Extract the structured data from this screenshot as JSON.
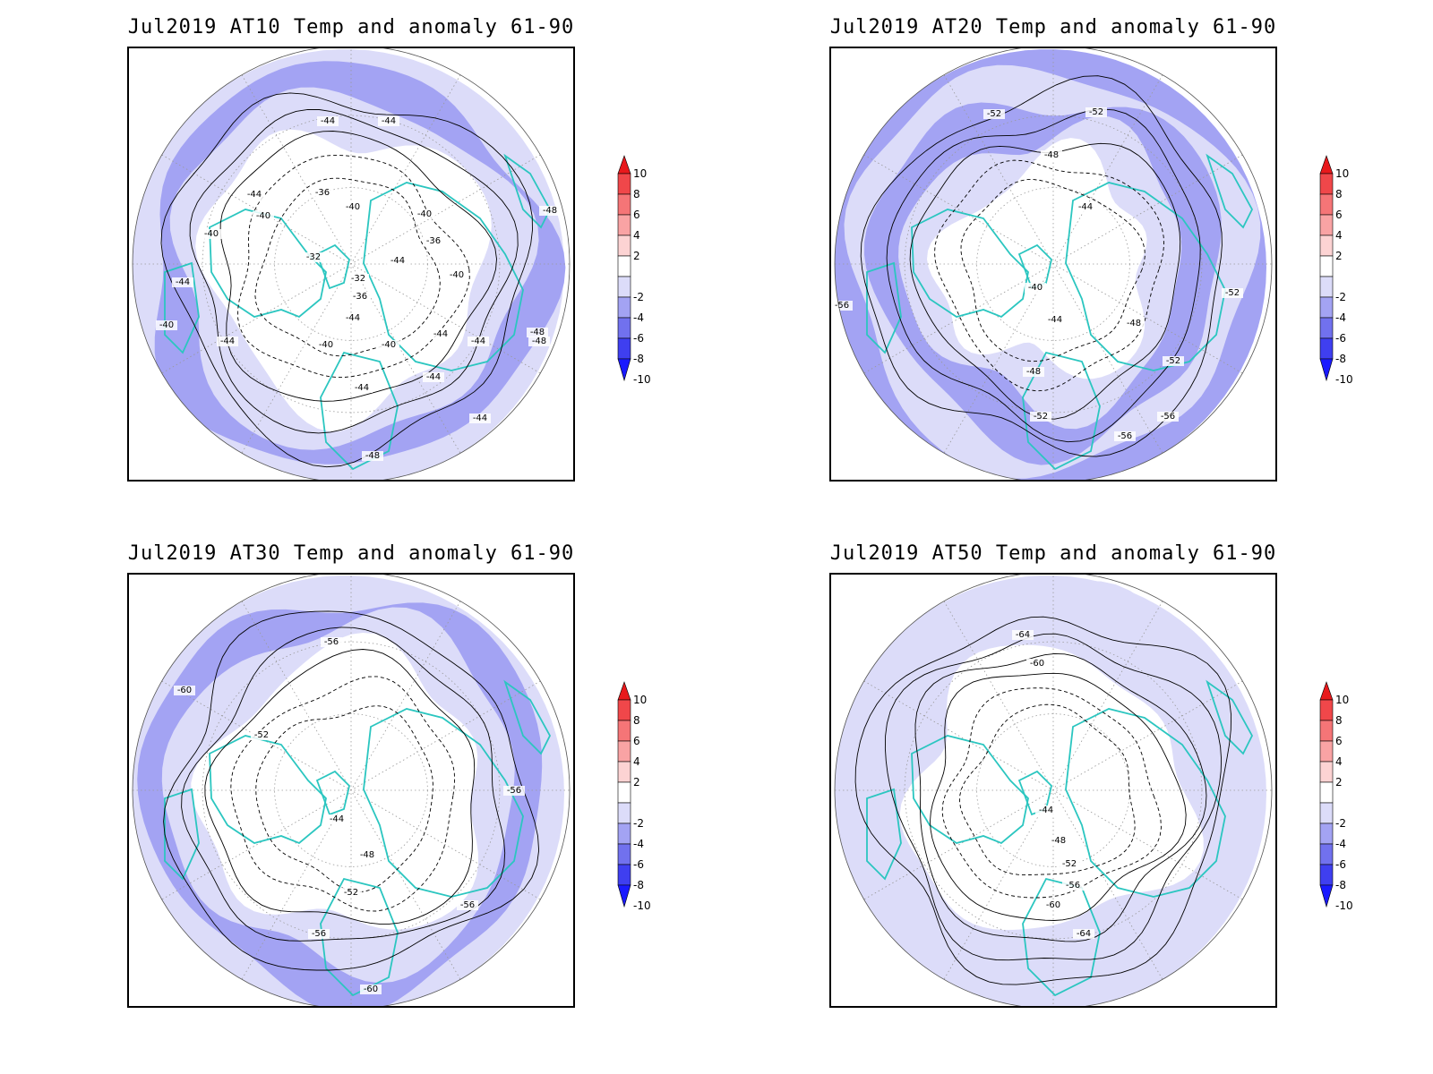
{
  "page": {
    "panels": [
      {
        "title": "Jul2019 AT10 Temp and anomaly 61-90",
        "contours": [
          {
            "label": "-32",
            "dashed": true
          },
          {
            "label": "-36",
            "dashed": true
          },
          {
            "label": "-40",
            "dashed": false
          },
          {
            "label": "-44",
            "dashed": false
          },
          {
            "label": "-48",
            "dashed": false
          }
        ],
        "labels": [
          "-44",
          "-44",
          "-44",
          "-40",
          "-40",
          "-40",
          "-36",
          "-32",
          "-32",
          "-36",
          "-40",
          "-36",
          "-40",
          "-44",
          "-44",
          "-44",
          "-44",
          "-40",
          "-40",
          "-44",
          "-44",
          "-44",
          "-48",
          "-48",
          "-48",
          "-48",
          "-44",
          "-40",
          "-44"
        ]
      },
      {
        "title": "Jul2019 AT20 Temp and anomaly 61-90",
        "contours": [
          {
            "label": "-40",
            "dashed": true
          },
          {
            "label": "-44",
            "dashed": true
          },
          {
            "label": "-48",
            "dashed": false
          },
          {
            "label": "-52",
            "dashed": false
          },
          {
            "label": "-56",
            "dashed": false
          }
        ],
        "labels": [
          "-52",
          "-52",
          "-48",
          "-44",
          "-40",
          "-44",
          "-48",
          "-48",
          "-52",
          "-52",
          "-52",
          "-56",
          "-56",
          "-56"
        ]
      },
      {
        "title": "Jul2019 AT30 Temp and anomaly 61-90",
        "contours": [
          {
            "label": "-44",
            "dashed": true
          },
          {
            "label": "-48",
            "dashed": true
          },
          {
            "label": "-52",
            "dashed": false
          },
          {
            "label": "-56",
            "dashed": false
          },
          {
            "label": "-60",
            "dashed": false
          }
        ],
        "labels": [
          "-56",
          "-60",
          "-52",
          "-44",
          "-48",
          "-52",
          "-56",
          "-56",
          "-56",
          "-60"
        ]
      },
      {
        "title": "Jul2019 AT50 Temp and anomaly 61-90",
        "contours": [
          {
            "label": "-44",
            "dashed": true
          },
          {
            "label": "-48",
            "dashed": true
          },
          {
            "label": "-52",
            "dashed": false
          },
          {
            "label": "-56",
            "dashed": false
          },
          {
            "label": "-60",
            "dashed": false
          },
          {
            "label": "-64",
            "dashed": false
          }
        ],
        "labels": [
          "-64",
          "-60",
          "-44",
          "-48",
          "-52",
          "-56",
          "-60",
          "-64"
        ]
      }
    ],
    "colorbar": {
      "ticks": [
        "10",
        "8",
        "6",
        "4",
        "2",
        "-2",
        "-4",
        "-6",
        "-8",
        "-10"
      ],
      "colors": [
        "#e8191c",
        "#f0474a",
        "#f57577",
        "#f9a3a4",
        "#fcd3d3",
        "#ffffff",
        "#dcdcf9",
        "#a3a3f3",
        "#7171ee",
        "#3f3ff0",
        "#1a1aff"
      ]
    },
    "map_colors": {
      "land_outline": "#2bc6c0",
      "shade_light": "#dcdcf9",
      "shade_mid": "#a3a3f3",
      "shade_dark": "#7171ee"
    }
  }
}
